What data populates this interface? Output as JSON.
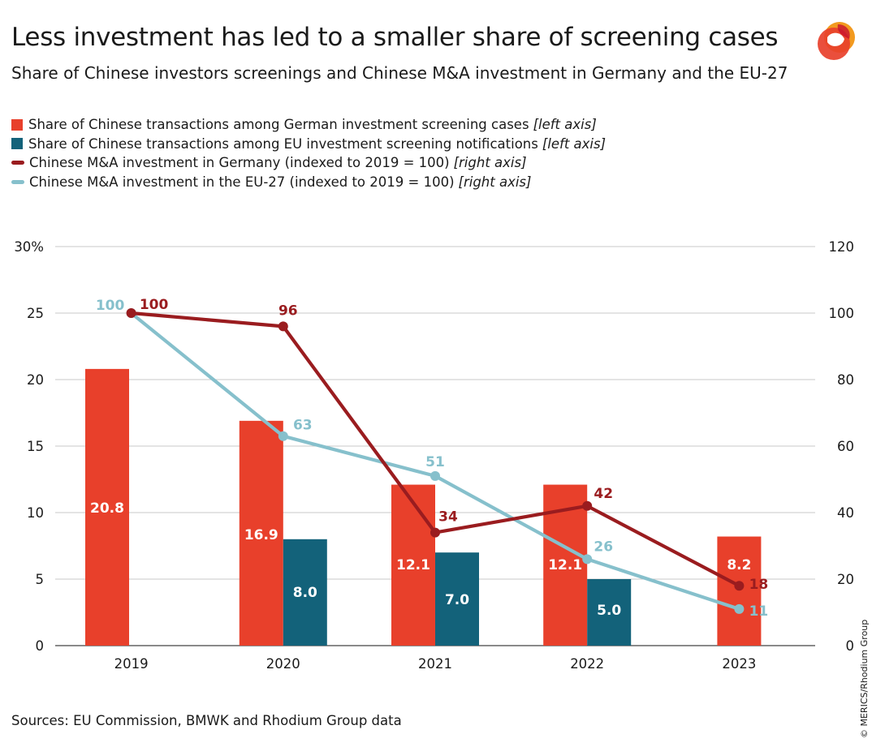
{
  "header": {
    "title": "Less investment has led to a smaller share of screening cases",
    "subtitle": "Share of Chinese investors screenings and Chinese M&A investment in Germany and the EU-27"
  },
  "legend": {
    "items": [
      {
        "label": "Share of Chinese transactions among German investment screening cases",
        "note": "[left axis]",
        "kind": "box",
        "color": "#e8402b"
      },
      {
        "label": "Share of Chinese transactions among EU investment screening notifications",
        "note": "[left axis]",
        "kind": "box",
        "color": "#13627a"
      },
      {
        "label": "Chinese M&A investment in Germany (indexed to 2019 = 100)",
        "note": "[right axis]",
        "kind": "line",
        "color": "#9a1c1f"
      },
      {
        "label": "Chinese M&A investment in the EU-27 (indexed to 2019 = 100)",
        "note": "[right axis]",
        "kind": "line",
        "color": "#86c0cc"
      }
    ]
  },
  "footer": {
    "source": "Sources: EU Commission, BMWK and Rhodium Group data",
    "copyright": "© MERICS/Rhodium Group"
  },
  "chart_data": {
    "type": "bar",
    "categories": [
      "2019",
      "2020",
      "2021",
      "2022",
      "2023"
    ],
    "left_axis": {
      "min": 0,
      "max": 30,
      "ticks": [
        "0",
        "5",
        "10",
        "15",
        "20",
        "25",
        "30%"
      ]
    },
    "right_axis": {
      "min": 0,
      "max": 120,
      "ticks": [
        "0",
        "20",
        "40",
        "60",
        "80",
        "100",
        "120"
      ]
    },
    "grid": true,
    "bar_series": [
      {
        "values": [
          20.8,
          16.9,
          12.1,
          12.1,
          8.2
        ],
        "labels": [
          "20.8",
          "16.9",
          "12.1",
          "12.1",
          "8.2"
        ],
        "color": "#e8402b"
      },
      {
        "values": [
          null,
          8.0,
          7.0,
          5.0,
          null
        ],
        "labels": [
          "",
          "8.0",
          "7.0",
          "5.0",
          ""
        ],
        "color": "#13627a"
      }
    ],
    "line_series": [
      {
        "values": [
          100,
          63,
          51,
          26,
          11
        ],
        "labels": [
          "100",
          "63",
          "51",
          "26",
          "11"
        ],
        "color": "#86c0cc"
      },
      {
        "values": [
          100,
          96,
          34,
          42,
          18
        ],
        "labels": [
          "100",
          "96",
          "34",
          "42",
          "18"
        ],
        "color": "#9a1c1f"
      }
    ]
  }
}
